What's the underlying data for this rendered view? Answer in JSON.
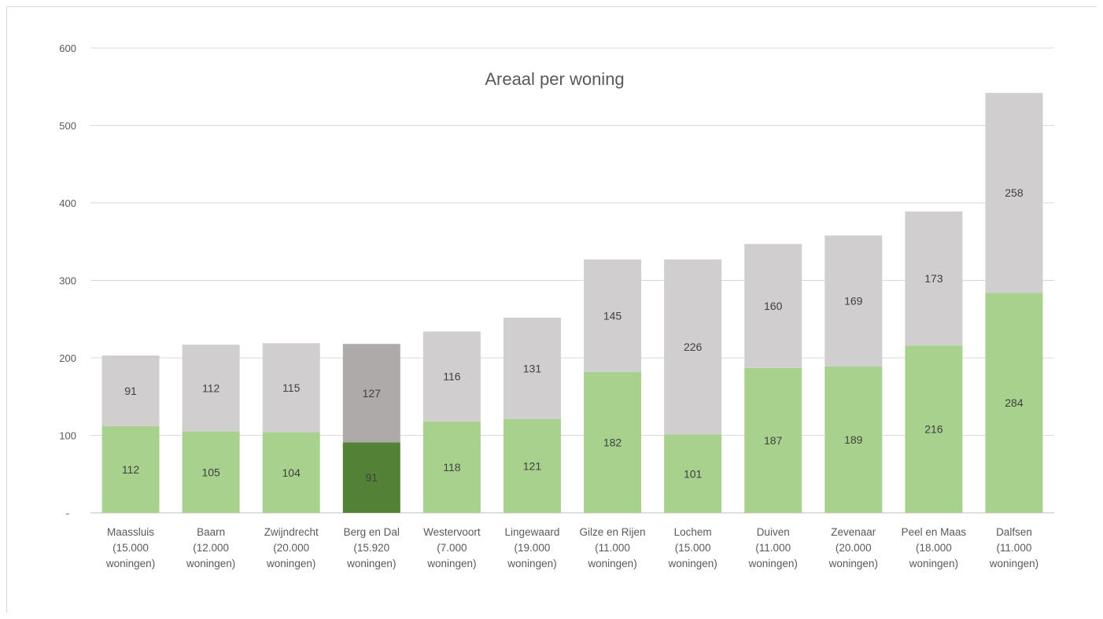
{
  "chart_data": {
    "type": "bar",
    "stacked": true,
    "title": "Areaal per woning",
    "xlabel": "",
    "ylabel": "",
    "ylim": [
      0,
      600
    ],
    "yticks": [
      0,
      100,
      200,
      300,
      400,
      500,
      600
    ],
    "ytick_labels": [
      "-",
      "100",
      "200",
      "300",
      "400",
      "500",
      "600"
    ],
    "grid": true,
    "legend": "none",
    "categories": [
      [
        "Maassluis",
        "(15.000",
        "woningen)"
      ],
      [
        "Baarn",
        "(12.000",
        "woningen)"
      ],
      [
        "Zwijndrecht",
        "(20.000",
        "woningen)"
      ],
      [
        "Berg en Dal",
        "(15.920",
        "woningen)"
      ],
      [
        "Westervoort",
        "(7.000",
        "woningen)"
      ],
      [
        "Lingewaard",
        "(19.000",
        "woningen)"
      ],
      [
        "Gilze en Rijen",
        "(11.000",
        "woningen)"
      ],
      [
        "Lochem",
        "(15.000",
        "woningen)"
      ],
      [
        "Duiven",
        "(11.000",
        "woningen)"
      ],
      [
        "Zevenaar",
        "(20.000",
        "woningen)"
      ],
      [
        "Peel en Maas",
        "(18.000",
        "woningen)"
      ],
      [
        "Dalfsen",
        "(11.000",
        "woningen)"
      ]
    ],
    "series": [
      {
        "values": [
          112,
          105,
          104,
          91,
          118,
          121,
          182,
          101,
          187,
          189,
          216,
          284
        ],
        "color": "#a9d18e",
        "highlight_color": "#538135"
      },
      {
        "values": [
          91,
          112,
          115,
          127,
          116,
          131,
          145,
          226,
          160,
          169,
          173,
          258
        ],
        "color": "#d0cece",
        "highlight_color": "#aeaaaa"
      }
    ],
    "highlight_index": 3,
    "highlight_label_color": "#ffffff"
  }
}
